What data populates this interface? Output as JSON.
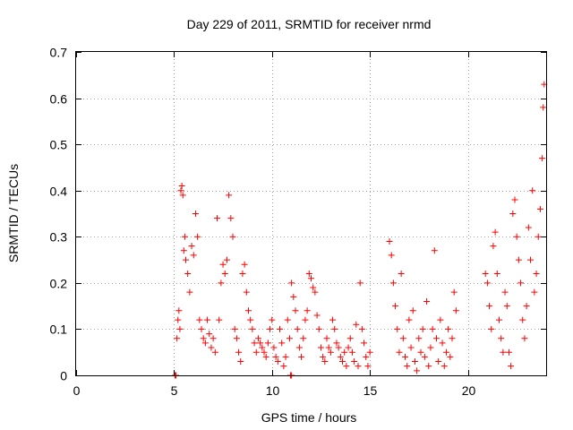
{
  "chart_data": {
    "type": "scatter",
    "title": "Day 229 of 2011, SRMTID for receiver nrmd",
    "xlabel": "GPS time / hours",
    "ylabel": "SRMTID / TECUs",
    "xlim": [
      0,
      24
    ],
    "ylim": [
      0,
      0.7
    ],
    "xticks": [
      0,
      5,
      10,
      15,
      20
    ],
    "xtick_labels": [
      "0",
      "5",
      "10",
      "15",
      "20"
    ],
    "yticks": [
      0,
      0.1,
      0.2,
      0.3,
      0.4,
      0.5,
      0.6,
      0.7
    ],
    "ytick_labels": [
      "0",
      "0.1",
      "0.2",
      "0.3",
      "0.4",
      "0.5",
      "0.6",
      "0.7"
    ],
    "grid": true,
    "marker": "+",
    "color": "#ff0000",
    "series": [
      {
        "values": [
          [
            5.05,
            0.0
          ],
          [
            5.1,
            0.0
          ],
          [
            10.95,
            0.0
          ],
          [
            11.0,
            0.0
          ],
          [
            5.15,
            0.08
          ],
          [
            5.2,
            0.12
          ],
          [
            5.25,
            0.14
          ],
          [
            5.3,
            0.1
          ],
          [
            5.35,
            0.4
          ],
          [
            5.4,
            0.41
          ],
          [
            5.45,
            0.39
          ],
          [
            5.5,
            0.27
          ],
          [
            5.55,
            0.3
          ],
          [
            5.6,
            0.25
          ],
          [
            5.7,
            0.22
          ],
          [
            5.8,
            0.18
          ],
          [
            5.9,
            0.28
          ],
          [
            6.0,
            0.26
          ],
          [
            6.1,
            0.35
          ],
          [
            6.2,
            0.3
          ],
          [
            6.3,
            0.12
          ],
          [
            6.4,
            0.1
          ],
          [
            6.5,
            0.08
          ],
          [
            6.6,
            0.07
          ],
          [
            6.7,
            0.12
          ],
          [
            6.8,
            0.09
          ],
          [
            6.9,
            0.06
          ],
          [
            7.0,
            0.08
          ],
          [
            7.1,
            0.05
          ],
          [
            7.2,
            0.34
          ],
          [
            7.3,
            0.12
          ],
          [
            7.4,
            0.2
          ],
          [
            7.5,
            0.24
          ],
          [
            7.6,
            0.22
          ],
          [
            7.7,
            0.25
          ],
          [
            7.8,
            0.39
          ],
          [
            7.9,
            0.34
          ],
          [
            8.0,
            0.3
          ],
          [
            8.1,
            0.1
          ],
          [
            8.2,
            0.08
          ],
          [
            8.3,
            0.05
          ],
          [
            8.4,
            0.03
          ],
          [
            8.5,
            0.22
          ],
          [
            8.6,
            0.24
          ],
          [
            8.7,
            0.18
          ],
          [
            8.8,
            0.14
          ],
          [
            8.9,
            0.12
          ],
          [
            9.0,
            0.1
          ],
          [
            9.1,
            0.07
          ],
          [
            9.2,
            0.05
          ],
          [
            9.3,
            0.08
          ],
          [
            9.4,
            0.07
          ],
          [
            9.5,
            0.06
          ],
          [
            9.6,
            0.05
          ],
          [
            9.7,
            0.04
          ],
          [
            9.8,
            0.07
          ],
          [
            9.9,
            0.1
          ],
          [
            10.0,
            0.12
          ],
          [
            10.1,
            0.06
          ],
          [
            10.2,
            0.04
          ],
          [
            10.3,
            0.03
          ],
          [
            10.4,
            0.1
          ],
          [
            10.5,
            0.07
          ],
          [
            10.6,
            0.02
          ],
          [
            10.7,
            0.04
          ],
          [
            10.8,
            0.12
          ],
          [
            10.9,
            0.08
          ],
          [
            11.0,
            0.2
          ],
          [
            11.1,
            0.17
          ],
          [
            11.2,
            0.14
          ],
          [
            11.3,
            0.1
          ],
          [
            11.4,
            0.06
          ],
          [
            11.5,
            0.04
          ],
          [
            11.6,
            0.08
          ],
          [
            11.7,
            0.12
          ],
          [
            11.8,
            0.14
          ],
          [
            11.9,
            0.22
          ],
          [
            12.0,
            0.21
          ],
          [
            12.1,
            0.19
          ],
          [
            12.2,
            0.18
          ],
          [
            12.3,
            0.13
          ],
          [
            12.4,
            0.1
          ],
          [
            12.5,
            0.06
          ],
          [
            12.6,
            0.04
          ],
          [
            12.7,
            0.03
          ],
          [
            12.8,
            0.08
          ],
          [
            12.9,
            0.06
          ],
          [
            13.0,
            0.05
          ],
          [
            13.1,
            0.12
          ],
          [
            13.2,
            0.1
          ],
          [
            13.3,
            0.07
          ],
          [
            13.4,
            0.06
          ],
          [
            13.5,
            0.04
          ],
          [
            13.6,
            0.03
          ],
          [
            13.7,
            0.05
          ],
          [
            13.8,
            0.02
          ],
          [
            13.9,
            0.06
          ],
          [
            14.0,
            0.08
          ],
          [
            14.1,
            0.05
          ],
          [
            14.2,
            0.03
          ],
          [
            14.3,
            0.11
          ],
          [
            14.4,
            0.02
          ],
          [
            14.5,
            0.2
          ],
          [
            14.6,
            0.1
          ],
          [
            14.7,
            0.07
          ],
          [
            14.8,
            0.04
          ],
          [
            14.9,
            0.02
          ],
          [
            15.0,
            0.05
          ],
          [
            16.0,
            0.29
          ],
          [
            16.1,
            0.26
          ],
          [
            16.2,
            0.2
          ],
          [
            16.3,
            0.15
          ],
          [
            16.4,
            0.1
          ],
          [
            16.5,
            0.05
          ],
          [
            16.6,
            0.22
          ],
          [
            16.7,
            0.08
          ],
          [
            16.8,
            0.04
          ],
          [
            16.9,
            0.02
          ],
          [
            17.0,
            0.12
          ],
          [
            17.1,
            0.06
          ],
          [
            17.2,
            0.14
          ],
          [
            17.3,
            0.03
          ],
          [
            17.4,
            0.01
          ],
          [
            17.5,
            0.08
          ],
          [
            17.6,
            0.05
          ],
          [
            17.7,
            0.1
          ],
          [
            17.8,
            0.04
          ],
          [
            17.9,
            0.16
          ],
          [
            18.0,
            0.02
          ],
          [
            18.1,
            0.06
          ],
          [
            18.2,
            0.1
          ],
          [
            18.3,
            0.27
          ],
          [
            18.4,
            0.08
          ],
          [
            18.5,
            0.03
          ],
          [
            18.6,
            0.12
          ],
          [
            18.7,
            0.07
          ],
          [
            18.8,
            0.02
          ],
          [
            18.9,
            0.05
          ],
          [
            19.0,
            0.1
          ],
          [
            19.1,
            0.04
          ],
          [
            19.2,
            0.08
          ],
          [
            19.3,
            0.18
          ],
          [
            19.4,
            0.14
          ],
          [
            20.9,
            0.22
          ],
          [
            21.0,
            0.2
          ],
          [
            21.1,
            0.15
          ],
          [
            21.2,
            0.1
          ],
          [
            21.3,
            0.28
          ],
          [
            21.4,
            0.31
          ],
          [
            21.5,
            0.22
          ],
          [
            21.6,
            0.12
          ],
          [
            21.7,
            0.08
          ],
          [
            21.8,
            0.05
          ],
          [
            21.9,
            0.18
          ],
          [
            22.0,
            0.15
          ],
          [
            22.1,
            0.05
          ],
          [
            22.2,
            0.02
          ],
          [
            22.3,
            0.35
          ],
          [
            22.4,
            0.38
          ],
          [
            22.5,
            0.3
          ],
          [
            22.6,
            0.25
          ],
          [
            22.7,
            0.2
          ],
          [
            22.8,
            0.12
          ],
          [
            22.9,
            0.08
          ],
          [
            23.0,
            0.15
          ],
          [
            23.1,
            0.32
          ],
          [
            23.2,
            0.25
          ],
          [
            23.3,
            0.4
          ],
          [
            23.4,
            0.18
          ],
          [
            23.5,
            0.22
          ],
          [
            23.6,
            0.3
          ],
          [
            23.7,
            0.36
          ],
          [
            23.8,
            0.47
          ],
          [
            23.85,
            0.58
          ],
          [
            23.9,
            0.63
          ]
        ]
      }
    ]
  }
}
